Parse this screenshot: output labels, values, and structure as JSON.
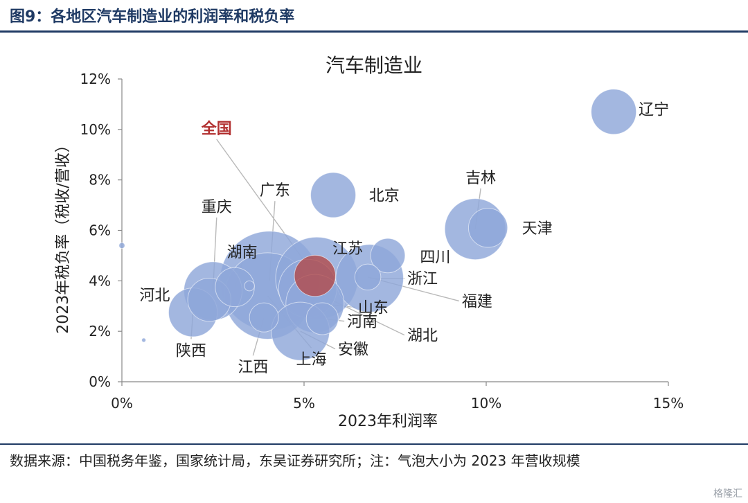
{
  "figure_title": "图9：各地区汽车制造业的利润率和税负率",
  "source_note": "数据来源：中国税务年鉴，国家统计局，东吴证券研究所；注：气泡大小为 2023 年营收规模",
  "watermark": "格隆汇",
  "colors": {
    "bubble": "#8fa7d9",
    "highlight": "#b24a4a",
    "leader": "#b9b9b9",
    "highlight_label": "#b23030"
  },
  "chart_data": {
    "type": "scatter",
    "title": "汽车制造业",
    "xlabel": "2023年利润率",
    "ylabel": "2023年税负率（税收/营收）",
    "xlim": [
      0,
      15
    ],
    "ylim": [
      0,
      12
    ],
    "x_ticks": [
      "0%",
      "5%",
      "10%",
      "15%"
    ],
    "y_ticks": [
      "0%",
      "2%",
      "4%",
      "6%",
      "8%",
      "10%",
      "12%"
    ],
    "grid": false,
    "bubble_size_meaning": "2023年营收规模",
    "points": [
      {
        "name": "辽宁",
        "x": 13.5,
        "y": 10.7,
        "size": 0.6
      },
      {
        "name": "北京",
        "x": 5.8,
        "y": 7.4,
        "size": 0.6
      },
      {
        "name": "吉林",
        "x": 9.7,
        "y": 6.05,
        "size": 1.1
      },
      {
        "name": "天津",
        "x": 10.05,
        "y": 6.1,
        "size": 0.45
      },
      {
        "name": "四川",
        "x": 7.3,
        "y": 5.0,
        "size": 0.35
      },
      {
        "name": "浙江",
        "x": 6.8,
        "y": 4.1,
        "size": 1.35
      },
      {
        "name": "福建",
        "x": 6.75,
        "y": 4.15,
        "size": 0.2
      },
      {
        "name": "江苏",
        "x": 5.35,
        "y": 4.1,
        "size": 2.0
      },
      {
        "name": "全国",
        "x": 5.3,
        "y": 4.2,
        "size": 0.5,
        "highlight": true
      },
      {
        "name": "广东",
        "x": 4.05,
        "y": 4.0,
        "size": 2.9
      },
      {
        "name": "上海",
        "x": 4.0,
        "y": 3.4,
        "size": 2.2
      },
      {
        "name": "湖北",
        "x": 5.1,
        "y": 3.7,
        "size": 1.0
      },
      {
        "name": "山东",
        "x": 5.3,
        "y": 3.1,
        "size": 1.0
      },
      {
        "name": "河南",
        "x": 5.5,
        "y": 2.5,
        "size": 0.3
      },
      {
        "name": "安徽",
        "x": 4.9,
        "y": 2.0,
        "size": 1.0
      },
      {
        "name": "江西",
        "x": 3.9,
        "y": 2.55,
        "size": 0.25
      },
      {
        "name": "湖南",
        "x": 3.1,
        "y": 3.75,
        "size": 0.45
      },
      {
        "name": "重庆",
        "x": 2.5,
        "y": 3.6,
        "size": 1.0
      },
      {
        "name": "河北",
        "x": 2.4,
        "y": 3.25,
        "size": 0.55
      },
      {
        "name": "陕西",
        "x": 1.95,
        "y": 2.75,
        "size": 0.7
      },
      {
        "name": "",
        "x": 3.5,
        "y": 3.8,
        "size": 0.03
      },
      {
        "name": "",
        "x": 0.0,
        "y": 5.4,
        "size": 0.01
      },
      {
        "name": "",
        "x": 0.6,
        "y": 1.65,
        "size": 0.005
      }
    ],
    "labels": [
      {
        "text": "辽宁",
        "x": 14.6,
        "y": 10.8,
        "leader_to": null
      },
      {
        "text": "北京",
        "x": 7.2,
        "y": 7.4,
        "leader_to": null
      },
      {
        "text": "吉林",
        "x": 9.85,
        "y": 8.1,
        "leader_to": "吉林"
      },
      {
        "text": "天津",
        "x": 11.4,
        "y": 6.1,
        "leader_to": null
      },
      {
        "text": "四川",
        "x": 8.6,
        "y": 4.95,
        "leader_to": null
      },
      {
        "text": "浙江",
        "x": 8.25,
        "y": 4.1,
        "leader_to": "浙江"
      },
      {
        "text": "福建",
        "x": 9.75,
        "y": 3.2,
        "leader_to": "福建"
      },
      {
        "text": "江苏",
        "x": 6.2,
        "y": 5.3,
        "leader_to": null
      },
      {
        "text": "全国",
        "x": 2.6,
        "y": 10.05,
        "leader_to": "全国"
      },
      {
        "text": "广东",
        "x": 4.2,
        "y": 7.6,
        "leader_to": "广东"
      },
      {
        "text": "上海",
        "x": 5.2,
        "y": 0.9,
        "leader_to": "上海"
      },
      {
        "text": "湖北",
        "x": 8.25,
        "y": 1.85,
        "leader_to": "湖北"
      },
      {
        "text": "山东",
        "x": 6.9,
        "y": 2.95,
        "leader_to": "山东"
      },
      {
        "text": "河南",
        "x": 6.6,
        "y": 2.4,
        "leader_to": "河南"
      },
      {
        "text": "安徽",
        "x": 6.35,
        "y": 1.3,
        "leader_to": "安徽"
      },
      {
        "text": "江西",
        "x": 3.6,
        "y": 0.6,
        "leader_to": "江西"
      },
      {
        "text": "湖南",
        "x": 3.3,
        "y": 5.15,
        "leader_to": "湖南"
      },
      {
        "text": "重庆",
        "x": 2.6,
        "y": 6.95,
        "leader_to": "重庆"
      },
      {
        "text": "河北",
        "x": 0.9,
        "y": 3.45,
        "leader_to": null
      },
      {
        "text": "陕西",
        "x": 1.9,
        "y": 1.25,
        "leader_to": "陕西"
      }
    ]
  }
}
